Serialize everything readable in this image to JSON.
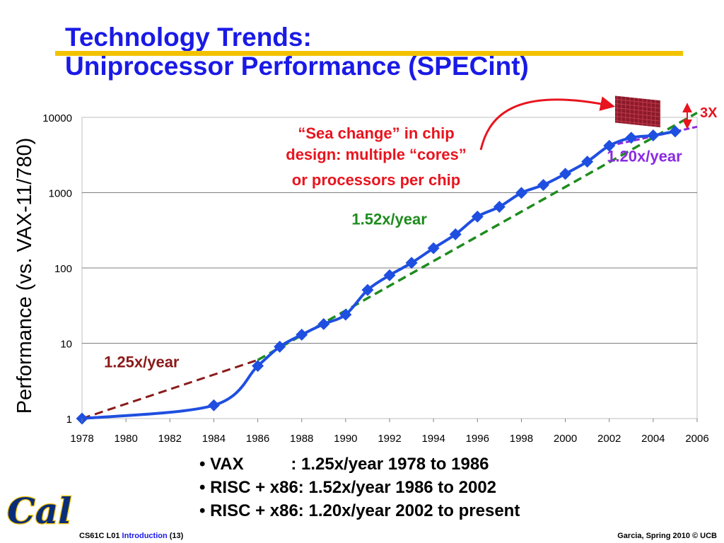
{
  "slide": {
    "title_line1": "Technology Trends:",
    "title_line2": "Uniprocessor Performance (SPECint)",
    "bullets": [
      "• VAX          : 1.25x/year 1978 to 1986",
      "• RISC + x86: 1.52x/year 1986 to 2002",
      "• RISC + x86: 1.20x/year 2002 to present"
    ],
    "footer": {
      "course": "CS61C L01",
      "topic": "Introduction",
      "page": "(13)",
      "credit": "Garcia, Spring 2010 © UCB"
    },
    "logo_text": "Cal"
  },
  "chart_data": {
    "type": "line",
    "ylabel": "Performance (vs. VAX-11/780)",
    "xlabel": "",
    "yscale": "log",
    "ylim": [
      1,
      10000
    ],
    "xlim": [
      1978,
      2006
    ],
    "yticks": [
      1,
      10,
      100,
      1000,
      10000
    ],
    "ytick_labels": [
      "1",
      "10",
      "100",
      "1000",
      "10000"
    ],
    "xticks": [
      1978,
      1980,
      1982,
      1984,
      1986,
      1988,
      1990,
      1992,
      1994,
      1996,
      1998,
      2000,
      2002,
      2004,
      2006
    ],
    "grid": "horizontal",
    "series": [
      {
        "color": "#1f4fe0",
        "points": [
          [
            1978,
            1
          ],
          [
            1984,
            1.5
          ],
          [
            1986,
            5
          ],
          [
            1987,
            9
          ],
          [
            1988,
            13
          ],
          [
            1989,
            18
          ],
          [
            1990,
            24
          ],
          [
            1991,
            51
          ],
          [
            1992,
            80
          ],
          [
            1993,
            117
          ],
          [
            1994,
            183
          ],
          [
            1995,
            280
          ],
          [
            1996,
            481
          ],
          [
            1997,
            649
          ],
          [
            1998,
            993
          ],
          [
            1999,
            1267
          ],
          [
            2000,
            1779
          ],
          [
            2001,
            2584
          ],
          [
            2002,
            4195
          ],
          [
            2003,
            5364
          ],
          [
            2004,
            5764
          ],
          [
            2005,
            6505
          ]
        ]
      }
    ],
    "trend_lines": [
      {
        "label": "1.25x/year",
        "color": "#8b1a1a",
        "from": [
          1978,
          1
        ],
        "to": [
          1986,
          6
        ]
      },
      {
        "label": "1.52x/year",
        "color": "#1e8c1e",
        "from": [
          1986,
          6
        ],
        "to": [
          2006,
          11500
        ]
      },
      {
        "label": "1.20x/year",
        "color": "#8a2be2",
        "from": [
          2002,
          4195
        ],
        "to": [
          2006,
          7500
        ]
      }
    ],
    "annotations": {
      "sea_change": [
        "“Sea change” in chip",
        "design: multiple “cores”",
        "or processors per chip"
      ],
      "gap_label": "3X",
      "colors": {
        "sea_change": "#e8141e",
        "gap": "#e8141e",
        "gap_box": "#8b1a2a"
      }
    }
  }
}
